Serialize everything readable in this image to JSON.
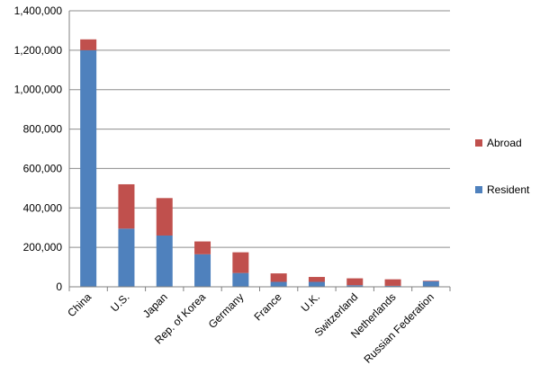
{
  "chart_data": {
    "type": "bar",
    "stacked": true,
    "categories": [
      "China",
      "U.S.",
      "Japan",
      "Rep. of Korea",
      "Germany",
      "France",
      "U.K.",
      "Switzerland",
      "Netherlands",
      "Russian Federation"
    ],
    "series": [
      {
        "name": "Resident",
        "color": "#4f81bd",
        "values": [
          1200000,
          295000,
          260000,
          165000,
          70000,
          25000,
          25000,
          8000,
          5000,
          28000
        ]
      },
      {
        "name": "Abroad",
        "color": "#c0504d",
        "values": [
          55000,
          225000,
          190000,
          65000,
          105000,
          43000,
          25000,
          35000,
          33000,
          3000
        ]
      }
    ],
    "ylim": [
      0,
      1400000
    ],
    "yticks": [
      0,
      200000,
      400000,
      600000,
      800000,
      1000000,
      1200000,
      1400000
    ],
    "ytick_labels": [
      "0",
      "200,000",
      "400,000",
      "600,000",
      "800,000",
      "1,000,000",
      "1,200,000",
      "1,400,000"
    ],
    "grid": true,
    "legend_position": "right",
    "legend_order": [
      "Abroad",
      "Resident"
    ]
  }
}
